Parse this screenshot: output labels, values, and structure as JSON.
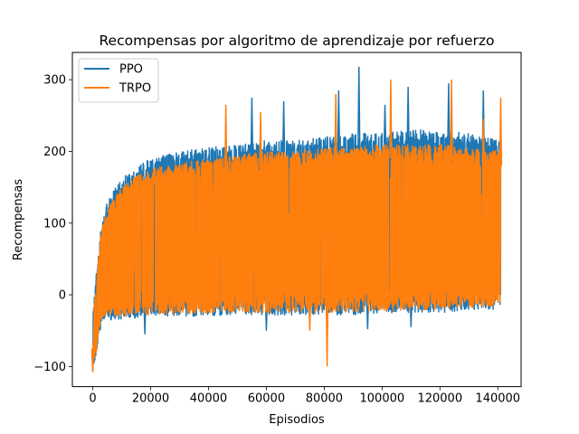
{
  "chart_data": {
    "type": "line",
    "title": "Recompensas por algoritmo de aprendizaje por refuerzo",
    "xlabel": "Episodios",
    "ylabel": "Recompensas",
    "xlim": [
      -7050,
      148050
    ],
    "ylim": [
      -128,
      338
    ],
    "xticks": [
      0,
      20000,
      40000,
      60000,
      80000,
      100000,
      120000,
      140000
    ],
    "xtick_labels": [
      "0",
      "20000",
      "40000",
      "60000",
      "80000",
      "100000",
      "120000",
      "140000"
    ],
    "yticks": [
      -100,
      0,
      100,
      200,
      300
    ],
    "ytick_labels": [
      "−100",
      "0",
      "100",
      "200",
      "300"
    ],
    "grid": false,
    "legend_position": "top-left",
    "x_range": [
      0,
      141000
    ],
    "series": [
      {
        "name": "PPO",
        "color": "#1f77b4",
        "envelope_x": [
          0,
          1000,
          2000,
          3000,
          5000,
          8000,
          12000,
          20000,
          30000,
          40000,
          50000,
          60000,
          70000,
          80000,
          90000,
          100000,
          110000,
          120000,
          130000,
          141000
        ],
        "upper": [
          -30,
          20,
          60,
          100,
          130,
          150,
          170,
          190,
          200,
          205,
          210,
          215,
          215,
          220,
          225,
          225,
          230,
          230,
          225,
          215
        ],
        "lower": [
          -100,
          -90,
          -60,
          -40,
          -35,
          -35,
          -35,
          -30,
          -30,
          -30,
          -28,
          -28,
          -28,
          -28,
          -28,
          -25,
          -25,
          -25,
          -22,
          -20
        ],
        "peaks": [
          [
            92000,
            318
          ],
          [
            123000,
            295
          ],
          [
            109000,
            290
          ],
          [
            85000,
            285
          ],
          [
            66000,
            270
          ],
          [
            135000,
            285
          ],
          [
            55000,
            275
          ],
          [
            101000,
            265
          ]
        ],
        "troughs": [
          [
            0,
            -105
          ],
          [
            18000,
            -55
          ],
          [
            60000,
            -50
          ],
          [
            95000,
            -48
          ],
          [
            110000,
            -45
          ]
        ]
      },
      {
        "name": "TRPO",
        "color": "#ff7f0e",
        "envelope_x": [
          0,
          1000,
          2000,
          3000,
          5000,
          8000,
          12000,
          20000,
          30000,
          40000,
          50000,
          60000,
          70000,
          80000,
          90000,
          100000,
          110000,
          120000,
          130000,
          141000
        ],
        "upper": [
          -40,
          10,
          50,
          90,
          120,
          140,
          160,
          175,
          185,
          190,
          195,
          200,
          200,
          205,
          205,
          210,
          210,
          210,
          205,
          200
        ],
        "lower": [
          -95,
          -85,
          -55,
          -35,
          -30,
          -30,
          -30,
          -28,
          -27,
          -26,
          -25,
          -25,
          -25,
          -25,
          -24,
          -22,
          -22,
          -20,
          -18,
          -15
        ],
        "peaks": [
          [
            103000,
            300
          ],
          [
            124000,
            300
          ],
          [
            141000,
            275
          ],
          [
            84000,
            280
          ],
          [
            46000,
            265
          ],
          [
            58000,
            255
          ],
          [
            135000,
            245
          ]
        ],
        "troughs": [
          [
            0,
            -108
          ],
          [
            81000,
            -100
          ],
          [
            75000,
            -50
          ]
        ]
      }
    ]
  }
}
